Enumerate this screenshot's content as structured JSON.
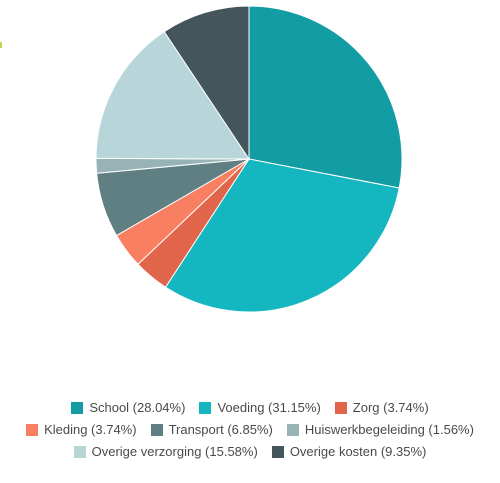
{
  "chart_data": {
    "type": "pie",
    "start_angle_deg": 0,
    "direction": "clockwise",
    "slices": [
      {
        "label": "School",
        "value": 28.04,
        "legend": "School (28.04%)",
        "color": "#129ca3"
      },
      {
        "label": "Voeding",
        "value": 31.15,
        "legend": "Voeding (31.15%)",
        "color": "#14b7c0"
      },
      {
        "label": "Zorg",
        "value": 3.74,
        "legend": "Zorg (3.74%)",
        "color": "#e1654a"
      },
      {
        "label": "Kleding",
        "value": 3.74,
        "legend": "Kleding (3.74%)",
        "color": "#f87f61"
      },
      {
        "label": "Transport",
        "value": 6.85,
        "legend": "Transport (6.85%)",
        "color": "#5f7f82"
      },
      {
        "label": "Huiswerkbegeleiding",
        "value": 1.56,
        "legend": "Huiswerkbegeleiding (1.56%)",
        "color": "#98b3b6"
      },
      {
        "label": "Overige verzorging",
        "value": 15.58,
        "legend": "Overige verzorging (15.58%)",
        "color": "#b8d5da"
      },
      {
        "label": "Overige kosten",
        "value": 9.35,
        "legend": "Overige kosten (9.35%)",
        "color": "#45555c"
      }
    ],
    "legend_placement": "bottom",
    "legend_rows": [
      [
        0,
        1,
        2
      ],
      [
        3,
        4,
        5
      ],
      [
        6,
        7
      ]
    ]
  }
}
